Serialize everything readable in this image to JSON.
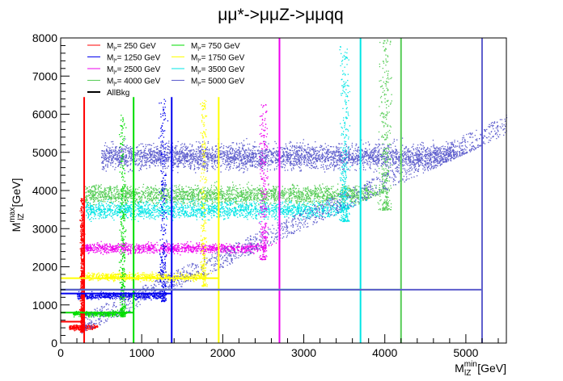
{
  "chart_data": {
    "type": "scatter",
    "title": "μμ*->μμZ->μμqq",
    "xlabel": {
      "main": "M",
      "sup": "min",
      "sub": "lZ",
      "unit": " [GeV]"
    },
    "ylabel": {
      "main": "M",
      "sup": "max",
      "sub": "lZ",
      "unit": " [GeV]"
    },
    "xlim": [
      0,
      5500
    ],
    "ylim": [
      0,
      8000
    ],
    "x_ticks": [
      0,
      1000,
      2000,
      3000,
      4000,
      5000
    ],
    "x_tick_labels": [
      "0",
      "1000",
      "2000",
      "3000",
      "4000",
      "5000"
    ],
    "y_ticks": [
      0,
      1000,
      2000,
      3000,
      4000,
      5000,
      6000,
      7000,
      8000
    ],
    "y_tick_labels": [
      "0",
      "1000",
      "2000",
      "3000",
      "4000",
      "5000",
      "6000",
      "7000",
      "8000"
    ],
    "grid": false,
    "legend_position": "top-left",
    "series": [
      {
        "name": "M",
        "sub": "l*",
        "suffix": "= 250 GeV",
        "mass": 250,
        "color": "#ff0000",
        "box": {
          "x_cut": 290,
          "y_cut": 560
        },
        "vline_top": 6450
      },
      {
        "name": "M",
        "sub": "l*",
        "suffix": "= 750 GeV",
        "mass": 750,
        "color": "#00dd00",
        "box": {
          "x_cut": 900,
          "y_cut": 800
        },
        "vline_top": 6450
      },
      {
        "name": "M",
        "sub": "l*",
        "suffix": "= 1250 GeV",
        "mass": 1250,
        "color": "#0000ee",
        "box": {
          "x_cut": 1370,
          "y_cut": 1300
        },
        "vline_top": 6450
      },
      {
        "name": "M",
        "sub": "l*",
        "suffix": "= 1750 GeV",
        "mass": 1750,
        "color": "#ffff00",
        "box": {
          "x_cut": 1950,
          "y_cut": 1700
        },
        "vline_top": 6450
      },
      {
        "name": "M",
        "sub": "l*",
        "suffix": "= 2500 GeV",
        "mass": 2500,
        "color": "#ee00ee",
        "box": {
          "x_cut": 2700,
          "y_cut": 1400
        },
        "vline_top": 8000
      },
      {
        "name": "M",
        "sub": "l*",
        "suffix": "= 3500 GeV",
        "mass": 3500,
        "color": "#00e5e5",
        "box": {
          "x_cut": 3700,
          "y_cut": 1400
        },
        "vline_top": 8000
      },
      {
        "name": "M",
        "sub": "l*",
        "suffix": "= 4000 GeV",
        "mass": 4000,
        "color": "#55cc55",
        "box": {
          "x_cut": 4200,
          "y_cut": 1400
        },
        "vline_top": 8000
      },
      {
        "name": "M",
        "sub": "l*",
        "suffix": "= 5000 GeV",
        "mass": 5000,
        "color": "#5c5ccc",
        "box": {
          "x_cut": 5200,
          "y_cut": 1400
        },
        "vline_top": 8000
      },
      {
        "name": "AllBkg",
        "sub": "",
        "suffix": "",
        "mass": null,
        "color": "#000000",
        "box": null,
        "vline_top": null
      }
    ],
    "bands": [
      {
        "series": 7,
        "y_center": 4900,
        "y_spread": 550,
        "x_from": 500,
        "x_to": 5500,
        "n": 4200
      },
      {
        "series": 6,
        "y_center": 3900,
        "y_spread": 420,
        "x_from": 300,
        "x_to": 4300,
        "n": 2600
      },
      {
        "series": 5,
        "y_center": 3500,
        "y_spread": 380,
        "x_from": 300,
        "x_to": 3800,
        "n": 2000
      },
      {
        "series": 4,
        "y_center": 2500,
        "y_spread": 220,
        "x_from": 250,
        "x_to": 2800,
        "n": 1300
      },
      {
        "series": 3,
        "y_center": 1750,
        "y_spread": 180,
        "x_from": 250,
        "x_to": 2000,
        "n": 800
      },
      {
        "series": 2,
        "y_center": 1250,
        "y_spread": 150,
        "x_from": 200,
        "x_to": 1400,
        "n": 600
      },
      {
        "series": 1,
        "y_center": 780,
        "y_spread": 120,
        "x_from": 150,
        "x_to": 900,
        "n": 450
      },
      {
        "series": 0,
        "y_center": 420,
        "y_spread": 110,
        "x_from": 100,
        "x_to": 450,
        "n": 300
      }
    ],
    "peaks": [
      {
        "series": 0,
        "x_center": 260,
        "x_spread": 40,
        "y_from": 300,
        "y_to": 3800,
        "n": 700
      },
      {
        "series": 1,
        "x_center": 760,
        "x_spread": 60,
        "y_from": 700,
        "y_to": 6000,
        "n": 350
      },
      {
        "series": 2,
        "x_center": 1260,
        "x_spread": 70,
        "y_from": 1100,
        "y_to": 6400,
        "n": 300
      },
      {
        "series": 3,
        "x_center": 1760,
        "x_spread": 70,
        "y_from": 1500,
        "y_to": 6400,
        "n": 260
      },
      {
        "series": 4,
        "x_center": 2500,
        "x_spread": 90,
        "y_from": 2200,
        "y_to": 6300,
        "n": 260
      },
      {
        "series": 5,
        "x_center": 3500,
        "x_spread": 100,
        "y_from": 3200,
        "y_to": 7800,
        "n": 320
      },
      {
        "series": 6,
        "x_center": 4000,
        "x_spread": 120,
        "y_from": 3500,
        "y_to": 8000,
        "n": 320
      }
    ],
    "diagonal_edge": {
      "x0": 250,
      "y0": 250,
      "x1": 5500,
      "y1": 5500
    }
  }
}
